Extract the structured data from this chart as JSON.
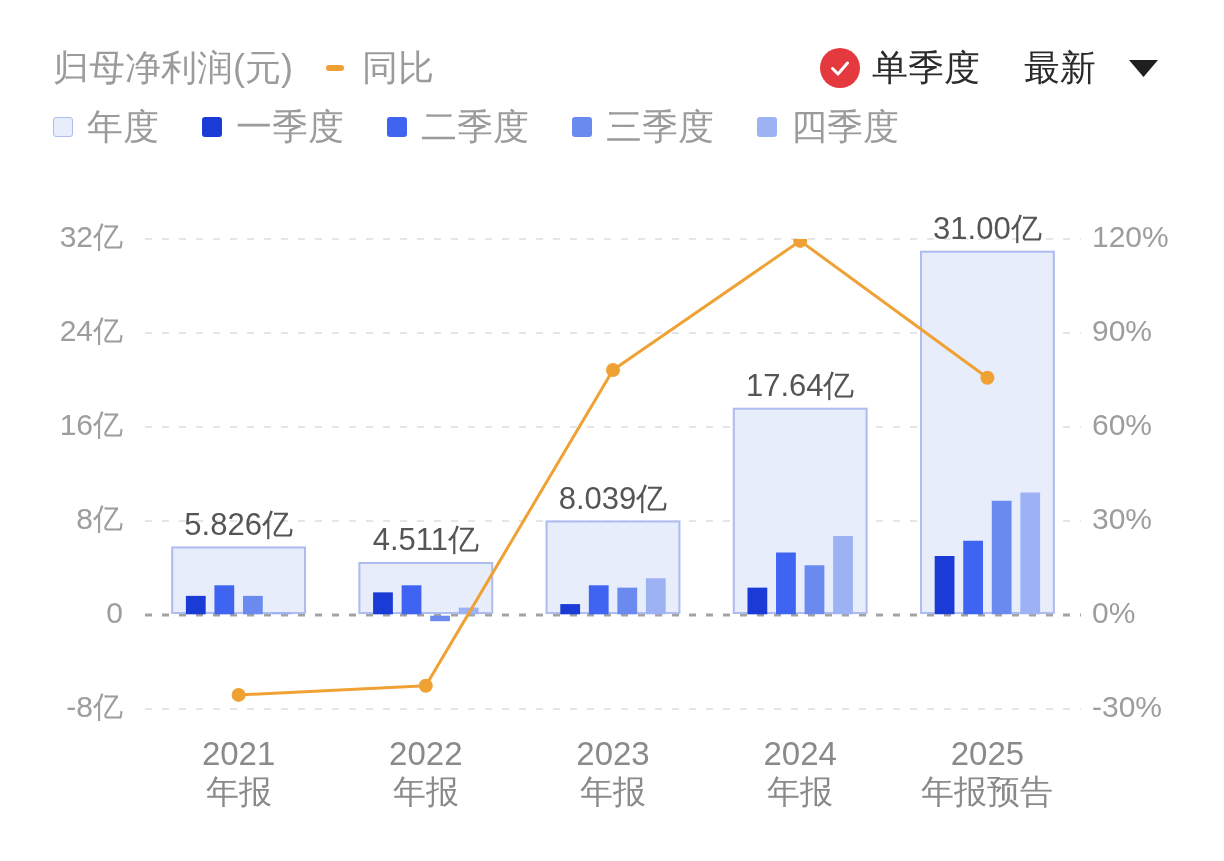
{
  "chart_data": {
    "type": "bar",
    "title": "归母净利润(元)",
    "categories": [
      "2021\n年报",
      "2022\n年报",
      "2023\n年报",
      "2024\n年报",
      "2025\n年报预告"
    ],
    "series": [
      {
        "name": "年度",
        "color": "#e8edfc",
        "values": [
          5.826,
          4.511,
          8.039,
          17.64,
          31.0
        ],
        "value_labels": [
          "5.826亿",
          "4.511亿",
          "8.039亿",
          "17.64亿",
          "31.00亿"
        ]
      },
      {
        "name": "一季度",
        "color": "#1a3bd6",
        "values": [
          1.6,
          1.9,
          0.9,
          2.3,
          5.0
        ]
      },
      {
        "name": "二季度",
        "color": "#3f64f2",
        "values": [
          2.5,
          2.5,
          2.5,
          5.3,
          6.3
        ]
      },
      {
        "name": "三季度",
        "color": "#6b8af0",
        "values": [
          1.6,
          -0.5,
          2.3,
          4.2,
          9.7
        ]
      },
      {
        "name": "四季度",
        "color": "#9db2f5",
        "values": [
          0.2,
          0.6,
          3.1,
          6.7,
          10.4
        ]
      },
      {
        "name": "同比",
        "type": "line",
        "axis": "y2",
        "color": "#f0a134",
        "values": [
          -25.5,
          -22.6,
          78.2,
          119.4,
          75.7
        ]
      }
    ],
    "ylim": [
      -8,
      32
    ],
    "yticks": [
      {
        "value": -8,
        "label": "-8亿"
      },
      0,
      {
        "value": 8,
        "label": "8亿"
      },
      {
        "value": 16,
        "label": "16亿"
      },
      {
        "value": 24,
        "label": "24亿"
      },
      {
        "value": 32,
        "label": "32亿"
      }
    ],
    "y2lim": [
      -30,
      120
    ],
    "y2ticks": [
      {
        "value": -30,
        "label": "-30%"
      },
      {
        "value": 0,
        "label": "0%"
      },
      {
        "value": 30,
        "label": "30%"
      },
      {
        "value": 60,
        "label": "60%"
      },
      {
        "value": 90,
        "label": "90%"
      },
      {
        "value": 120,
        "label": "120%"
      }
    ],
    "ref_lines": [
      {
        "axis": "y",
        "value": 0,
        "color": "#a3a3a3",
        "line_style": "dashed"
      }
    ],
    "grid": "y",
    "legend": "top left",
    "marker": "circle",
    "annotations": [
      "单季度",
      "最新"
    ]
  }
}
